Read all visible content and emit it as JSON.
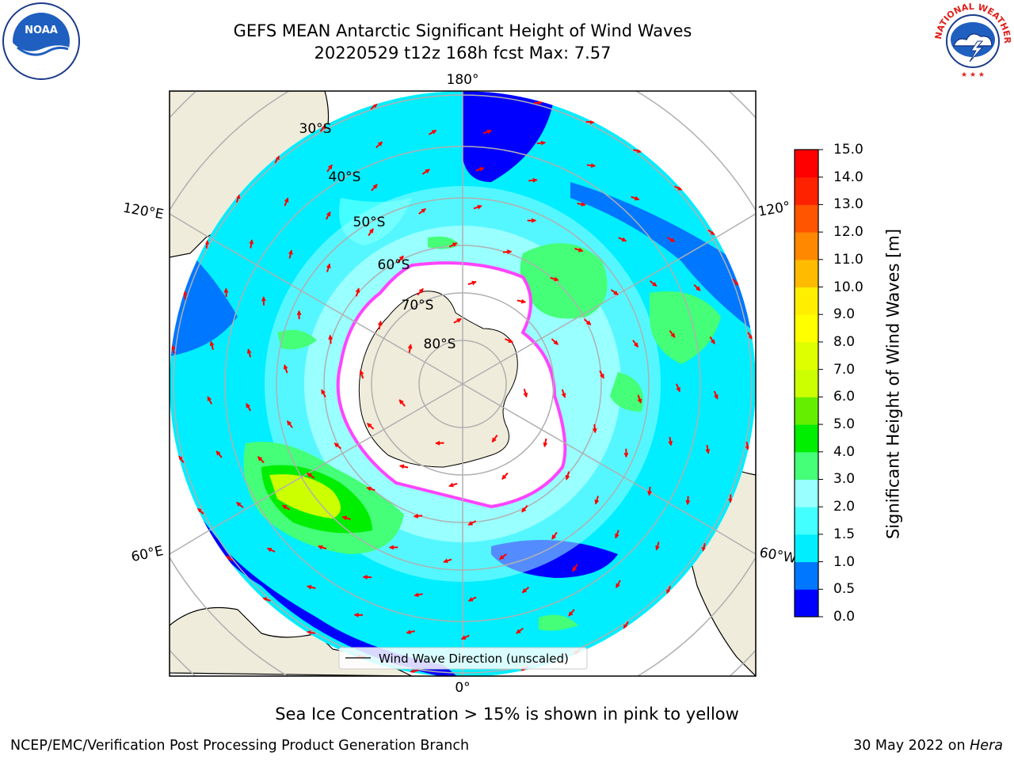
{
  "header": {
    "title_line1": "GEFS MEAN Antarctic Significant Height of Wind Waves",
    "title_line2": "20220529 t12z 168h fcst   Max: 7.57"
  },
  "map": {
    "meridian_labels": {
      "top": "180°",
      "bottom": "0°",
      "left_upper": "120°E",
      "left_lower": "60°E",
      "right_upper": "120°",
      "right_lower": "60°W"
    },
    "parallel_labels": [
      "30°S",
      "40°S",
      "50°S",
      "60°S",
      "70°S",
      "80°S"
    ],
    "legend_label": "Wind Wave Direction (unscaled)",
    "land_color": "#efecdb",
    "ice_color": "#ffffff",
    "ice_edge_color": "#ff44ff"
  },
  "colorbar": {
    "label": "Significant Height of Wind Waves [m]",
    "ticks": [
      "0.0",
      "0.5",
      "1.0",
      "1.5",
      "2.0",
      "3.0",
      "4.0",
      "5.0",
      "6.0",
      "7.0",
      "8.0",
      "9.0",
      "10.0",
      "11.0",
      "12.0",
      "13.0",
      "14.0",
      "15.0"
    ],
    "colors": [
      "#0000ff",
      "#0077ff",
      "#00eeff",
      "#44ffff",
      "#99ffff",
      "#44ff77",
      "#00ee00",
      "#66ee00",
      "#ccff00",
      "#ddff00",
      "#ffff00",
      "#ffee00",
      "#ffbb00",
      "#ff8800",
      "#ff5500",
      "#ff2200",
      "#ff0000"
    ]
  },
  "footer": {
    "subtitle": "Sea Ice Concentration > 15% is shown in pink to yellow",
    "left": "NCEP/EMC/Verification Post Processing Product Generation Branch",
    "right_date": "30 May 2022 on",
    "right_host": "Hera"
  },
  "logos": {
    "noaa": "NOAA",
    "nws": "NATIONAL WEATHER SERVICE"
  }
}
